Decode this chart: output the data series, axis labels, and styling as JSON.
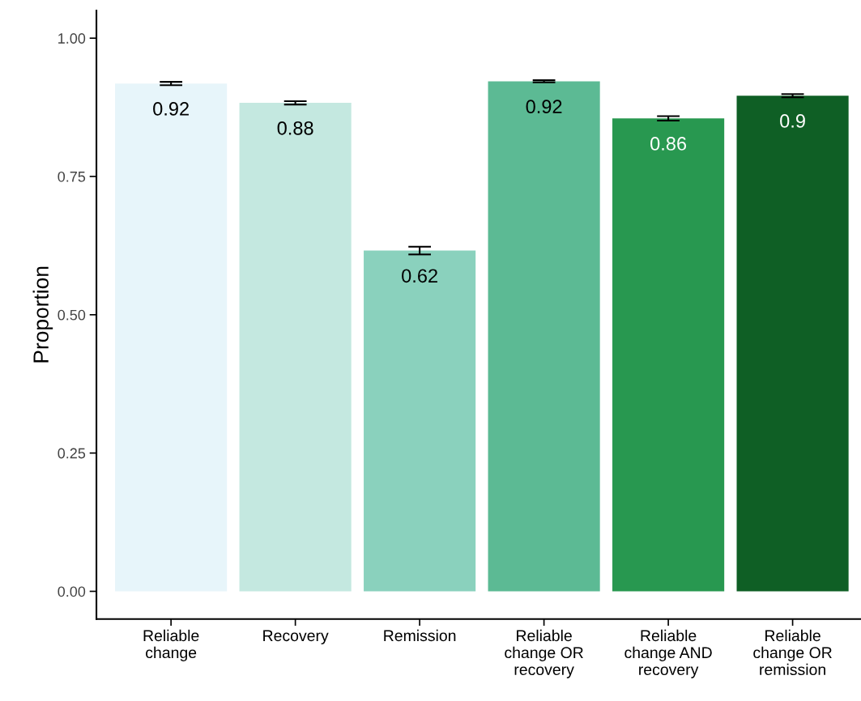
{
  "chart_data": {
    "type": "bar",
    "ylabel": "Proportion",
    "categories": [
      "Reliable\nchange",
      "Recovery",
      "Remission",
      "Reliable\nchange OR\nrecovery",
      "Reliable\nchange AND\nrecovery",
      "Reliable\nchange OR\nremission"
    ],
    "values": [
      0.918,
      0.883,
      0.616,
      0.922,
      0.855,
      0.896
    ],
    "errors": [
      0.003,
      0.003,
      0.007,
      0.002,
      0.004,
      0.003
    ],
    "value_labels": [
      "0.92",
      "0.88",
      "0.62",
      "0.92",
      "0.86",
      "0.9"
    ],
    "colors": [
      "#e7f5fa",
      "#c4e8e0",
      "#8ad1bd",
      "#5cba94",
      "#289850",
      "#0f5f25"
    ],
    "ylim": [
      -0.05,
      1.05
    ],
    "yticks": [
      {
        "value": 0,
        "label": "0.00"
      },
      {
        "value": 0.25,
        "label": "0.25"
      },
      {
        "value": 0.5,
        "label": "0.50"
      },
      {
        "value": 0.75,
        "label": "0.75"
      },
      {
        "value": 1,
        "label": "1.00"
      }
    ],
    "grid": false,
    "legend": false
  }
}
